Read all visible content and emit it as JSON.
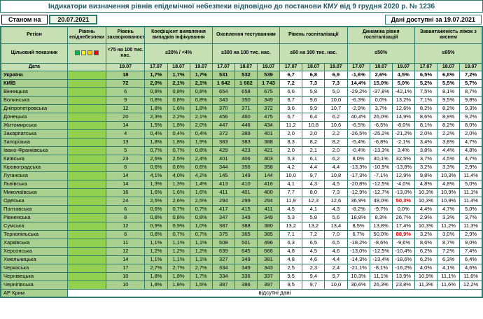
{
  "title": "Індикатори визначення рівнів епідемічної небезпеки відповідно до постанови КМУ від 9 грудня 2020 р. № 1236",
  "as_of_label": "Станом на",
  "as_of_date": "20.07.2021",
  "data_available": "Дані доступні за 19.07.2021",
  "traffic_colors": [
    "#00b050",
    "#ffff00",
    "#ffc000",
    "#ff0000"
  ],
  "columns": {
    "region": "Регіон",
    "target_label": "Цільовий показник",
    "date_label": "Дата",
    "groups": [
      {
        "title": "Рівень епіднебезпеки",
        "target": "",
        "dates": []
      },
      {
        "title": "Рівень захворюваності",
        "target": "<75 на 100 тис. нас.",
        "dates": [
          "19.07"
        ]
      },
      {
        "title": "Коефіцієнт виявлення випадків інфікування",
        "target": "≤20% / <4%",
        "dates": [
          "17.07",
          "18.07",
          "19.07"
        ]
      },
      {
        "title": "Охоплення тестуванням",
        "target": "≥300 на 100 тис. нас.",
        "dates": [
          "17.07",
          "18.07",
          "19.07"
        ]
      },
      {
        "title": "Рівень госпіталізації",
        "target": "≤60 на 100 тис. нас.",
        "dates": [
          "17.07",
          "18.07",
          "19.07"
        ]
      },
      {
        "title": "Динаміка рівня госпіталізацій",
        "target": "≤50%",
        "dates": [
          "17.07",
          "18.07",
          "19.07"
        ]
      },
      {
        "title": "Завантаженість ліжок з киснем",
        "target": "≤65%",
        "dates": [
          "17.07",
          "18.07",
          "19.07"
        ]
      }
    ]
  },
  "rows": [
    {
      "region": "Україна",
      "bold": true,
      "incidence": "18",
      "detection": [
        "1,7%",
        "1,7%",
        "1,7%"
      ],
      "testing": [
        "531",
        "532",
        "539"
      ],
      "hosp": [
        "6,7",
        "6,8",
        "6,9"
      ],
      "dynamics": [
        "-1,6%",
        "2,6%",
        "4,5%"
      ],
      "beds": [
        "6,5%",
        "6,8%",
        "7,2%"
      ]
    },
    {
      "region": "КИЇВ",
      "bold": true,
      "incidence": "72",
      "detection": [
        "2,0%",
        "2,1%",
        "2,1%"
      ],
      "testing": [
        "1 642",
        "1 602",
        "1 743"
      ],
      "hosp": [
        "7,2",
        "7,3",
        "7,3"
      ],
      "dynamics": [
        "14,4%",
        "15,0%",
        "5,0%"
      ],
      "beds": [
        "5,2%",
        "5,5%",
        "5,7%"
      ]
    },
    {
      "region": "Вінницька",
      "incidence": "6",
      "detection": [
        "0,8%",
        "0,8%",
        "0,8%"
      ],
      "testing": [
        "654",
        "658",
        "675"
      ],
      "hosp": [
        "6,6",
        "5,8",
        "5,0"
      ],
      "dynamics": [
        "-29,2%",
        "-37,8%",
        "-42,1%"
      ],
      "beds": [
        "7,5%",
        "8,1%",
        "8,7%"
      ]
    },
    {
      "region": "Волинська",
      "incidence": "9",
      "detection": [
        "0,8%",
        "0,8%",
        "0,8%"
      ],
      "testing": [
        "343",
        "350",
        "349"
      ],
      "hosp": [
        "8,7",
        "9,6",
        "10,0"
      ],
      "dynamics": [
        "-6,3%",
        "0,0%",
        "13,2%"
      ],
      "beds": [
        "7,1%",
        "9,5%",
        "9,8%"
      ]
    },
    {
      "region": "Дніпропетровська",
      "incidence": "12",
      "detection": [
        "1,8%",
        "1,6%",
        "1,8%"
      ],
      "testing": [
        "370",
        "371",
        "372"
      ],
      "hosp": [
        "9,6",
        "9,9",
        "10,7"
      ],
      "dynamics": [
        "-2,9%",
        "3,7%",
        "12,6%"
      ],
      "beds": [
        "8,2%",
        "8,2%",
        "9,3%"
      ]
    },
    {
      "region": "Донецька",
      "incidence": "20",
      "detection": [
        "2,3%",
        "2,2%",
        "2,1%"
      ],
      "testing": [
        "456",
        "460",
        "475"
      ],
      "hosp": [
        "6,7",
        "6,4",
        "6,2"
      ],
      "dynamics": [
        "40,4%",
        "26,0%",
        "14,9%"
      ],
      "beds": [
        "8,6%",
        "8,9%",
        "9,2%"
      ]
    },
    {
      "region": "Житомирська",
      "incidence": "14",
      "detection": [
        "1,5%",
        "1,8%",
        "2,0%"
      ],
      "testing": [
        "447",
        "446",
        "434"
      ],
      "hosp": [
        "11,2",
        "10,8",
        "10,6"
      ],
      "dynamics": [
        "-6,5%",
        "-6,5%",
        "-8,0%"
      ],
      "beds": [
        "8,1%",
        "8,2%",
        "8,0%"
      ]
    },
    {
      "region": "Закарпатська",
      "incidence": "4",
      "detection": [
        "0,4%",
        "0,4%",
        "0,4%"
      ],
      "testing": [
        "372",
        "389",
        "401"
      ],
      "hosp": [
        "2,0",
        "2,0",
        "2,2"
      ],
      "dynamics": [
        "-26,5%",
        "-25,2%",
        "-21,2%"
      ],
      "beds": [
        "2,0%",
        "2,2%",
        "2,0%"
      ]
    },
    {
      "region": "Запорізька",
      "incidence": "13",
      "detection": [
        "1,8%",
        "1,8%",
        "1,9%"
      ],
      "testing": [
        "383",
        "383",
        "388"
      ],
      "hosp": [
        "8,3",
        "8,2",
        "8,2"
      ],
      "dynamics": [
        "-5,4%",
        "-6,8%",
        "-2,1%"
      ],
      "beds": [
        "3,4%",
        "3,8%",
        "4,7%"
      ]
    },
    {
      "region": "Івано-Франківська",
      "incidence": "5",
      "detection": [
        "0,7%",
        "0,7%",
        "0,8%"
      ],
      "testing": [
        "429",
        "423",
        "421"
      ],
      "hosp": [
        "2,0",
        "2,1",
        "2,0"
      ],
      "dynamics": [
        "-0,4%",
        "-13,3%",
        "3,4%"
      ],
      "beds": [
        "3,8%",
        "4,4%",
        "4,8%"
      ]
    },
    {
      "region": "Київська",
      "incidence": "23",
      "detection": [
        "2,6%",
        "2,5%",
        "2,4%"
      ],
      "testing": [
        "401",
        "406",
        "403"
      ],
      "hosp": [
        "5,3",
        "6,1",
        "6,2"
      ],
      "dynamics": [
        "8,0%",
        "30,1%",
        "32,5%"
      ],
      "beds": [
        "3,7%",
        "4,5%",
        "4,7%"
      ]
    },
    {
      "region": "Кіровоградська",
      "incidence": "6",
      "detection": [
        "0,6%",
        "0,6%",
        "0,6%"
      ],
      "testing": [
        "344",
        "356",
        "358"
      ],
      "hosp": [
        "4,2",
        "4,4",
        "4,4"
      ],
      "dynamics": [
        "-13,3%",
        "-10,9%",
        "-13,8%"
      ],
      "beds": [
        "3,2%",
        "3,3%",
        "2,9%"
      ]
    },
    {
      "region": "Луганська",
      "incidence": "14",
      "detection": [
        "4,1%",
        "4,0%",
        "4,2%"
      ],
      "testing": [
        "145",
        "149",
        "144"
      ],
      "hosp": [
        "10,0",
        "9,7",
        "10,8"
      ],
      "dynamics": [
        "-17,3%",
        "-7,1%",
        "12,9%"
      ],
      "beds": [
        "9,8%",
        "10,3%",
        "11,4%"
      ]
    },
    {
      "region": "Львівська",
      "incidence": "14",
      "detection": [
        "1,3%",
        "1,3%",
        "1,4%"
      ],
      "testing": [
        "413",
        "410",
        "416"
      ],
      "hosp": [
        "4,1",
        "4,3",
        "4,5"
      ],
      "dynamics": [
        "-20,8%",
        "-12,5%",
        "-4,0%"
      ],
      "beds": [
        "4,8%",
        "4,8%",
        "5,0%"
      ]
    },
    {
      "region": "Миколаївська",
      "incidence": "16",
      "detection": [
        "1,6%",
        "1,6%",
        "1,6%"
      ],
      "testing": [
        "411",
        "401",
        "400"
      ],
      "hosp": [
        "7,7",
        "8,0",
        "7,3"
      ],
      "dynamics": [
        "-12,9%",
        "-12,7%",
        "-13,0%"
      ],
      "beds": [
        "10,3%",
        "10,9%",
        "11,1%"
      ]
    },
    {
      "region": "Одеська",
      "incidence": "24",
      "detection": [
        "2,5%",
        "2,6%",
        "2,5%"
      ],
      "testing": [
        "294",
        "299",
        "294"
      ],
      "hosp": [
        "11,9",
        "12,3",
        "12,6"
      ],
      "dynamics": [
        "36,9%",
        "48,0%",
        "50,3%"
      ],
      "red_dyn": [
        2
      ],
      "beds": [
        "10,3%",
        "10,9%",
        "11,4%"
      ]
    },
    {
      "region": "Полтавська",
      "incidence": "6",
      "detection": [
        "0,6%",
        "0,7%",
        "0,7%"
      ],
      "testing": [
        "417",
        "415",
        "411"
      ],
      "hosp": [
        "4,5",
        "4,1",
        "4,3"
      ],
      "dynamics": [
        "-8,2%",
        "-9,7%",
        "0,0%"
      ],
      "beds": [
        "4,4%",
        "4,7%",
        "5,0%"
      ]
    },
    {
      "region": "Рівненська",
      "incidence": "8",
      "detection": [
        "0,8%",
        "0,8%",
        "0,8%"
      ],
      "testing": [
        "347",
        "349",
        "349"
      ],
      "hosp": [
        "5,3",
        "5,8",
        "5,6"
      ],
      "dynamics": [
        "18,8%",
        "8,3%",
        "26,7%"
      ],
      "beds": [
        "2,9%",
        "3,3%",
        "3,7%"
      ]
    },
    {
      "region": "Сумська",
      "incidence": "12",
      "detection": [
        "0,9%",
        "0,9%",
        "1,0%"
      ],
      "testing": [
        "387",
        "388",
        "380"
      ],
      "hosp": [
        "13,2",
        "13,2",
        "13,4"
      ],
      "dynamics": [
        "8,5%",
        "13,8%",
        "17,4%"
      ],
      "beds": [
        "10,3%",
        "11,2%",
        "11,3%"
      ]
    },
    {
      "region": "Тернопільська",
      "incidence": "6",
      "detection": [
        "0,8%",
        "0,7%",
        "0,7%"
      ],
      "testing": [
        "375",
        "365",
        "385"
      ],
      "hosp": [
        "7,1",
        "7,2",
        "7,0"
      ],
      "dynamics": [
        "6,7%",
        "50,0%",
        "88,9%"
      ],
      "red_dyn": [
        2
      ],
      "beds": [
        "3,2%",
        "3,0%",
        "2,9%"
      ]
    },
    {
      "region": "Харківська",
      "incidence": "11",
      "detection": [
        "1,1%",
        "1,1%",
        "1,1%"
      ],
      "testing": [
        "508",
        "501",
        "496"
      ],
      "hosp": [
        "6,3",
        "6,5",
        "6,5"
      ],
      "dynamics": [
        "-18,2%",
        "-8,6%",
        "-9,6%"
      ],
      "beds": [
        "8,6%",
        "8,7%",
        "9,0%"
      ]
    },
    {
      "region": "Херсонська",
      "incidence": "12",
      "detection": [
        "1,2%",
        "1,2%",
        "1,2%"
      ],
      "testing": [
        "639",
        "645",
        "666"
      ],
      "hosp": [
        "4,8",
        "4,5",
        "4,6"
      ],
      "dynamics": [
        "-13,0%",
        "-12,5%",
        "-10,4%"
      ],
      "beds": [
        "6,2%",
        "7,2%",
        "7,4%"
      ]
    },
    {
      "region": "Хмельницька",
      "incidence": "14",
      "detection": [
        "1,1%",
        "1,1%",
        "1,1%"
      ],
      "testing": [
        "327",
        "349",
        "381"
      ],
      "hosp": [
        "4,8",
        "4,6",
        "4,4"
      ],
      "dynamics": [
        "-14,3%",
        "-13,4%",
        "-18,6%"
      ],
      "beds": [
        "6,2%",
        "6,3%",
        "6,4%"
      ]
    },
    {
      "region": "Черкаська",
      "incidence": "17",
      "detection": [
        "2,7%",
        "2,7%",
        "2,7%"
      ],
      "testing": [
        "334",
        "349",
        "343"
      ],
      "hosp": [
        "2,5",
        "2,3",
        "2,4"
      ],
      "dynamics": [
        "-21,1%",
        "-8,1%",
        "-16,2%"
      ],
      "beds": [
        "4,0%",
        "4,1%",
        "4,6%"
      ]
    },
    {
      "region": "Чернівецька",
      "incidence": "10",
      "detection": [
        "1,8%",
        "1,8%",
        "1,7%"
      ],
      "testing": [
        "334",
        "336",
        "337"
      ],
      "hosp": [
        "9,5",
        "9,4",
        "9,7"
      ],
      "dynamics": [
        "10,3%",
        "11,1%",
        "13,9%"
      ],
      "beds": [
        "10,9%",
        "11,1%",
        "11,6%"
      ]
    },
    {
      "region": "Чернігівська",
      "incidence": "10",
      "detection": [
        "1,8%",
        "1,8%",
        "1,5%"
      ],
      "testing": [
        "387",
        "386",
        "397"
      ],
      "hosp": [
        "9,5",
        "9,7",
        "10,0"
      ],
      "dynamics": [
        "30,6%",
        "26,3%",
        "23,8%"
      ],
      "beds": [
        "11,3%",
        "11,6%",
        "12,2%"
      ]
    }
  ],
  "no_data_row": {
    "region": "АР Крим",
    "text": "відсутні дані"
  }
}
